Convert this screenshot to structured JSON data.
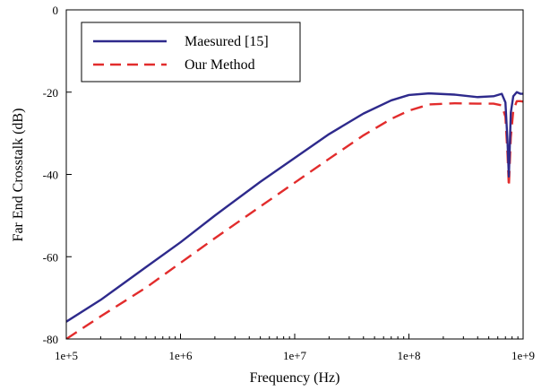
{
  "chart_data": {
    "type": "line",
    "xscale": "log",
    "xlim": [
      100000,
      1000000000
    ],
    "ylim": [
      -80,
      0
    ],
    "xlabel": "Frequency (Hz)",
    "ylabel": "Far End Crosstalk (dB)",
    "xticks": [
      "1e+5",
      "1e+6",
      "1e+7",
      "1e+8",
      "1e+9"
    ],
    "xtick_values": [
      100000,
      1000000,
      10000000,
      100000000,
      1000000000
    ],
    "yticks": [
      "0",
      "-20",
      "-40",
      "-60",
      "-80"
    ],
    "ytick_values": [
      0,
      -20,
      -40,
      -60,
      -80
    ],
    "grid": false,
    "legend_position": "top-left",
    "series": [
      {
        "name": "Maesured [15]",
        "color": "#2e2a8c",
        "style": "solid",
        "x": [
          100000,
          200000,
          500000,
          1000000,
          2000000,
          5000000,
          10000000,
          20000000,
          40000000,
          70000000,
          100000000,
          150000000,
          250000000,
          400000000,
          550000000,
          650000000,
          700000000,
          730000000,
          750000000,
          780000000,
          820000000,
          880000000,
          950000000,
          1000000000
        ],
        "y": [
          -75.8,
          -70.5,
          -62.5,
          -56.5,
          -50.0,
          -41.8,
          -36.0,
          -30.2,
          -25.2,
          -22.0,
          -20.7,
          -20.3,
          -20.6,
          -21.2,
          -21.0,
          -20.4,
          -22.5,
          -32.0,
          -40.5,
          -25.0,
          -21.0,
          -20.0,
          -20.4,
          -20.4
        ]
      },
      {
        "name": "Our Method",
        "color": "#e22c2c",
        "style": "dashed",
        "x": [
          100000,
          200000,
          500000,
          1000000,
          2000000,
          5000000,
          10000000,
          20000000,
          40000000,
          70000000,
          100000000,
          150000000,
          250000000,
          400000000,
          550000000,
          650000000,
          700000000,
          730000000,
          750000000,
          780000000,
          820000000,
          880000000,
          950000000,
          1000000000
        ],
        "y": [
          -80.0,
          -74.5,
          -67.5,
          -61.5,
          -55.5,
          -47.8,
          -42.0,
          -36.2,
          -30.5,
          -26.5,
          -24.5,
          -23.0,
          -22.7,
          -22.8,
          -22.8,
          -23.2,
          -26.0,
          -35.0,
          -43.0,
          -31.0,
          -24.5,
          -22.2,
          -22.2,
          -22.3
        ]
      }
    ]
  }
}
